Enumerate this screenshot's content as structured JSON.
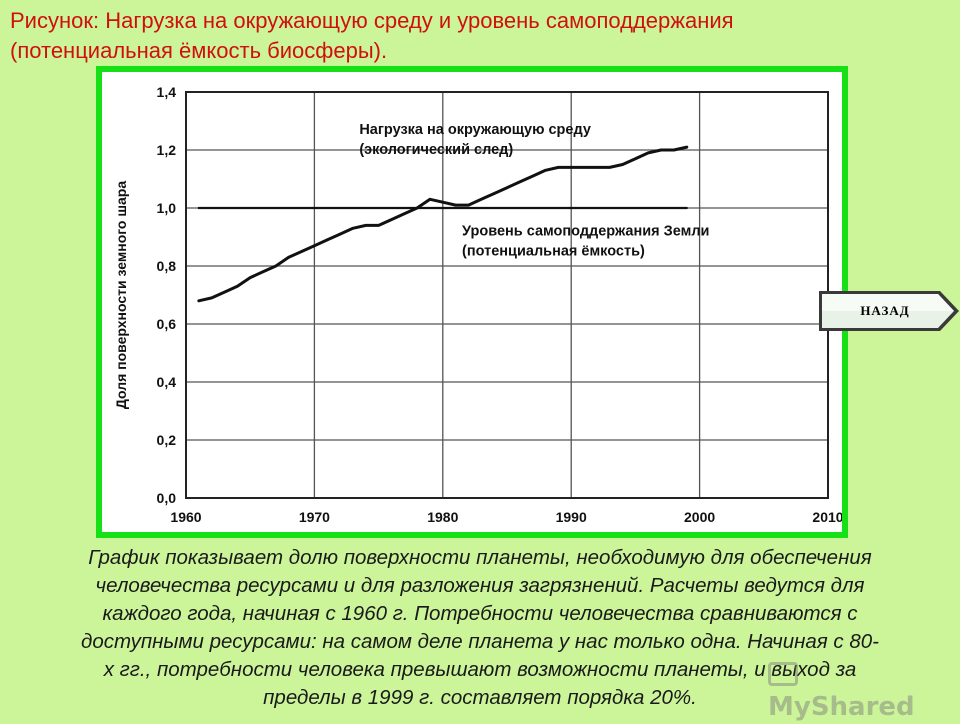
{
  "slide": {
    "title_lines": [
      "Рисунок:  Нагрузка на окружающую среду и уровень самоподдержания",
      "(потенциальная ёмкость биосферы)."
    ],
    "back_button": "НАЗАД",
    "caption_lines": [
      "График показывает долю поверхности планеты, необходимую для обеспечения",
      "человечества ресурсами и для разложения загрязнений. Расчеты ведутся для",
      "каждого года, начиная с 1960 г. Потребности человечества сравниваются с",
      "доступными ресурсами: на самом деле планета у нас только одна. Начиная с 80-",
      "х гг., потребности человека превышают возможности планеты, и выход за",
      "пределы в 1999 г. составляет порядка 20%."
    ],
    "watermark": "MyShared"
  },
  "colors": {
    "background": "#ccf59a",
    "title": "#d01010",
    "frame": "#16e016",
    "plot_line": "#111111"
  },
  "chart_data": {
    "type": "line",
    "ylabel": "Доля поверхности земного шара",
    "xlim": [
      1960,
      2010
    ],
    "ylim": [
      0.0,
      1.4
    ],
    "x_ticks": [
      "1960",
      "1970",
      "1980",
      "1990",
      "2000",
      "2010"
    ],
    "y_ticks": [
      "0,0",
      "0,2",
      "0,4",
      "0,6",
      "0,8",
      "1,0",
      "1,2",
      "1,4"
    ],
    "grid": true,
    "series": [
      {
        "name_lines": [
          "Нагрузка на окружающую среду",
          "(экологический след)"
        ],
        "x": [
          1961,
          1962,
          1963,
          1964,
          1965,
          1966,
          1967,
          1968,
          1969,
          1970,
          1971,
          1972,
          1973,
          1974,
          1975,
          1976,
          1977,
          1978,
          1979,
          1980,
          1981,
          1982,
          1983,
          1984,
          1985,
          1986,
          1987,
          1988,
          1989,
          1990,
          1991,
          1992,
          1993,
          1994,
          1995,
          1996,
          1997,
          1998,
          1999
        ],
        "y": [
          0.68,
          0.69,
          0.71,
          0.73,
          0.76,
          0.78,
          0.8,
          0.83,
          0.85,
          0.87,
          0.89,
          0.91,
          0.93,
          0.94,
          0.94,
          0.96,
          0.98,
          1.0,
          1.03,
          1.02,
          1.01,
          1.01,
          1.03,
          1.05,
          1.07,
          1.09,
          1.11,
          1.13,
          1.14,
          1.14,
          1.14,
          1.14,
          1.14,
          1.15,
          1.17,
          1.19,
          1.2,
          1.2,
          1.21
        ]
      },
      {
        "name_lines": [
          "Уровень самоподдержания Земли",
          "(потенциальная ёмкость)"
        ],
        "x": [
          1961,
          1999
        ],
        "y": [
          1.0,
          1.0
        ]
      }
    ]
  }
}
